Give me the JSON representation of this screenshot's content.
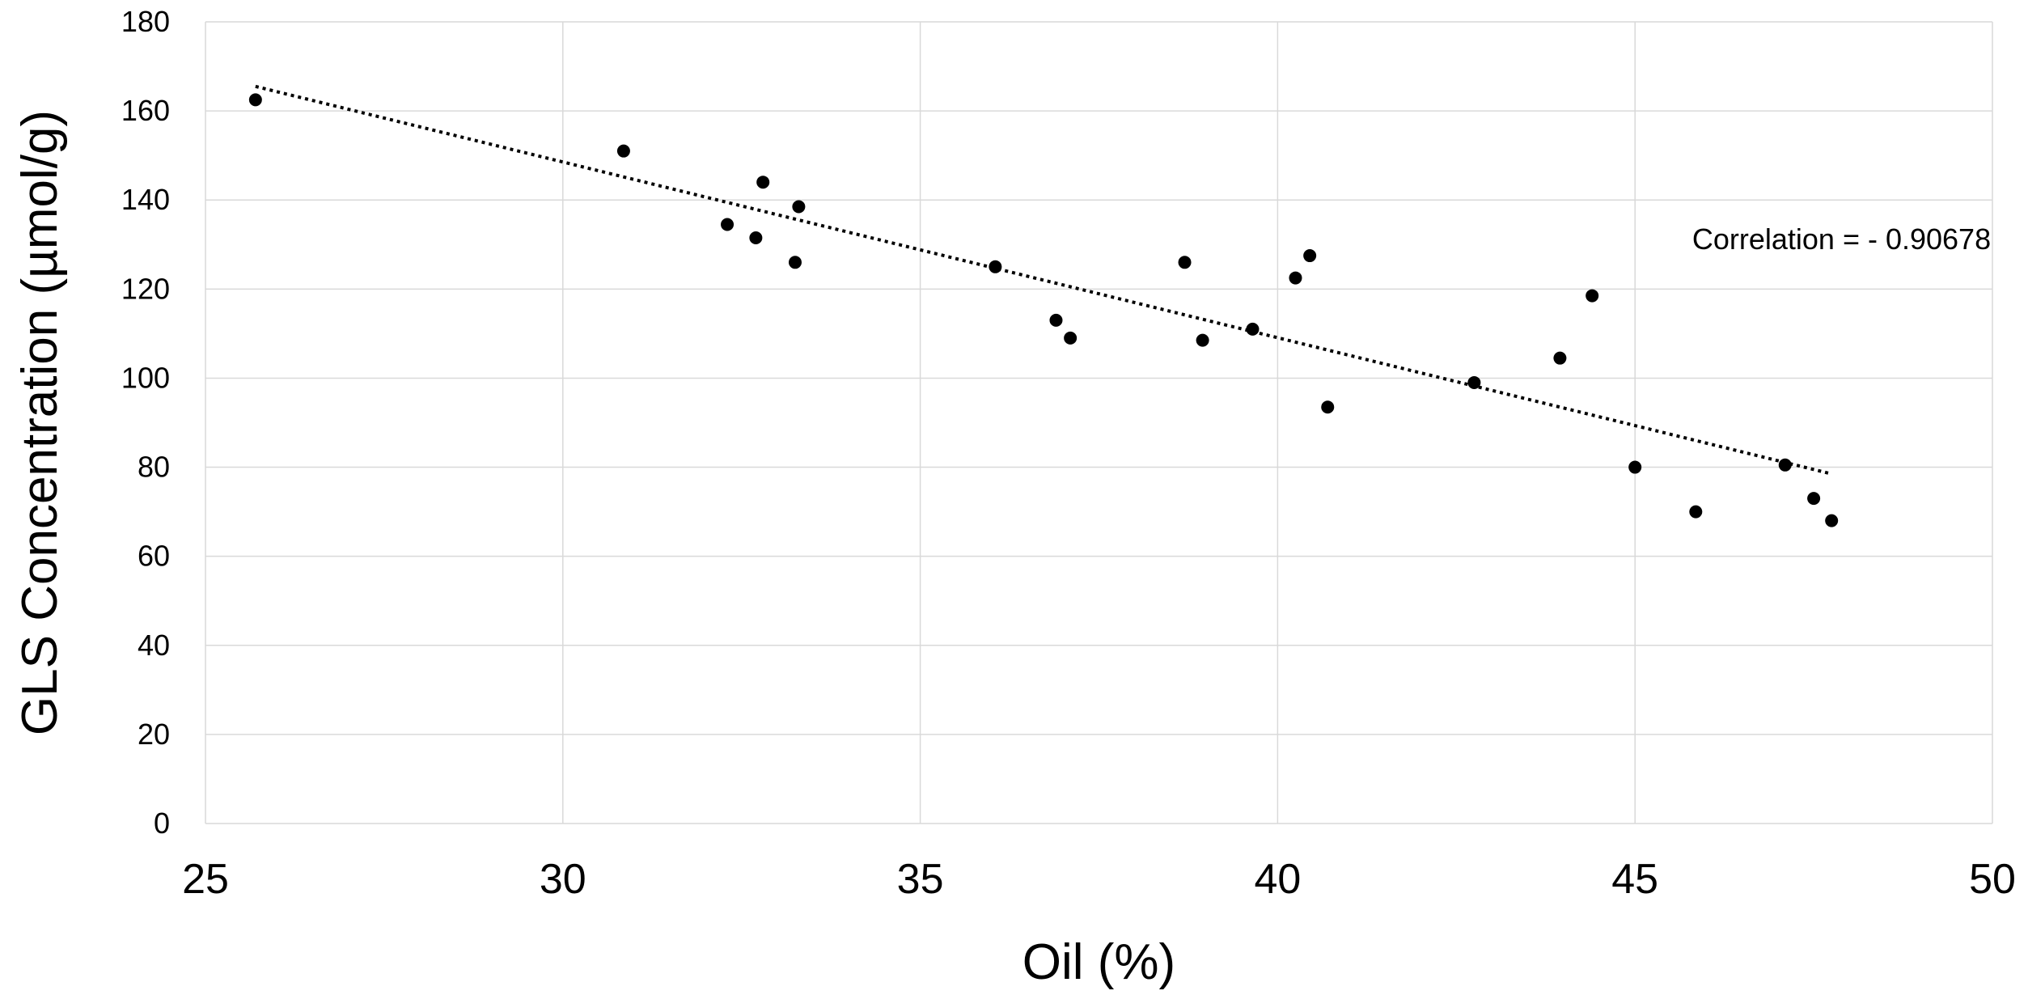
{
  "chart_data": {
    "type": "scatter",
    "title": "",
    "xlabel": "Oil (%)",
    "ylabel": "GLS Concentration (µmol/g)",
    "xlim": [
      25,
      50
    ],
    "ylim": [
      0,
      180
    ],
    "xticks": [
      25,
      30,
      35,
      40,
      45,
      50
    ],
    "yticks": [
      0,
      20,
      40,
      60,
      80,
      100,
      120,
      140,
      160,
      180
    ],
    "grid": true,
    "legend": "none",
    "marker_color": "#000000",
    "grid_color": "#d9d9d9",
    "series": [
      {
        "x": [
          25.7,
          30.85,
          32.3,
          32.7,
          32.8,
          33.25,
          33.3,
          36.05,
          36.9,
          37.1,
          38.7,
          38.95,
          39.65,
          40.25,
          40.45,
          40.7,
          42.75,
          43.95,
          44.4,
          45.0,
          45.85,
          47.1,
          47.5,
          47.75
        ],
        "y": [
          162.5,
          151,
          134.5,
          131.5,
          144,
          126,
          138.5,
          125,
          113,
          109,
          126,
          108.5,
          111,
          122.5,
          127.5,
          93.5,
          99,
          104.5,
          118.5,
          80,
          70,
          80.5,
          73,
          68
        ]
      }
    ],
    "trendline": {
      "type": "linear",
      "style": "dotted",
      "x": [
        25.7,
        47.75
      ],
      "y": [
        165.5,
        78.5
      ]
    },
    "annotations": [
      {
        "text": "Correlation =  - 0.90678",
        "x": 45.8,
        "y": 129
      }
    ]
  }
}
